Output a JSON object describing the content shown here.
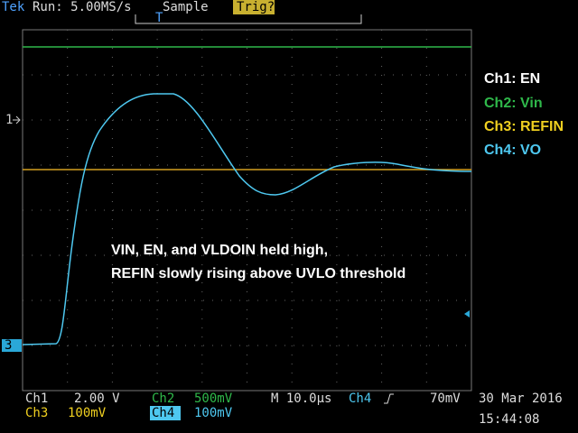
{
  "header": {
    "brand": "Tek",
    "run": "Run: 5.00MS/s",
    "mode": "Sample",
    "trigger": "Trig?"
  },
  "markers": {
    "ch1": "1",
    "ch3": "3"
  },
  "legend": [
    "Ch1: EN",
    "Ch2: Vin",
    "Ch3: REFIN",
    "Ch4: VO"
  ],
  "annotation": [
    "VIN, EN, and VLDOIN held high,",
    "REFIN slowly rising above UVLO threshold"
  ],
  "status": {
    "row1": [
      "Ch1",
      "2.00 V",
      "Ch2",
      "500mV",
      "M 10.0µs",
      "Ch4",
      "70mV"
    ],
    "row2": [
      "Ch3",
      "100mV",
      "Ch4",
      "100mV"
    ],
    "date": "30 Mar 2016",
    "time": "15:44:08"
  }
}
